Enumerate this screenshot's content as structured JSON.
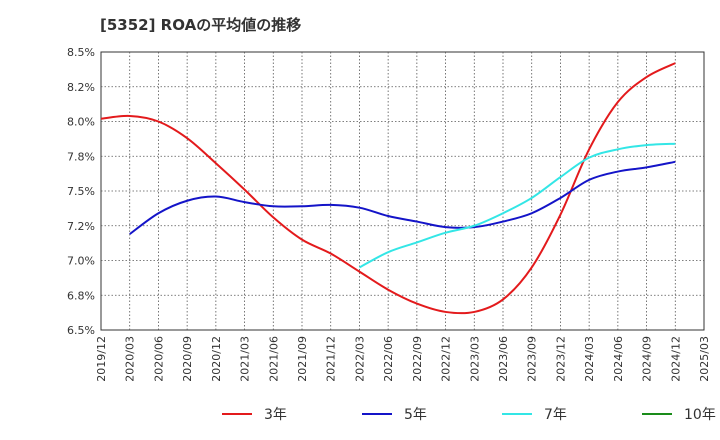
{
  "chart_data": {
    "type": "line",
    "title": "[5352]  ROAの平均値の推移",
    "xlabel": "",
    "ylabel": "",
    "ylim": [
      6.5,
      8.5
    ],
    "y_ticks": [
      {
        "value": 6.5,
        "label": "6.5%"
      },
      {
        "value": 6.75,
        "label": "6.8%"
      },
      {
        "value": 7.0,
        "label": "7.0%"
      },
      {
        "value": 7.25,
        "label": "7.2%"
      },
      {
        "value": 7.5,
        "label": "7.5%"
      },
      {
        "value": 7.75,
        "label": "7.8%"
      },
      {
        "value": 8.0,
        "label": "8.0%"
      },
      {
        "value": 8.25,
        "label": "8.2%"
      },
      {
        "value": 8.5,
        "label": "8.5%"
      }
    ],
    "x_ticks": [
      "2019/12",
      "2020/03",
      "2020/06",
      "2020/09",
      "2020/12",
      "2021/03",
      "2021/06",
      "2021/09",
      "2021/12",
      "2022/03",
      "2022/06",
      "2022/09",
      "2022/12",
      "2023/03",
      "2023/06",
      "2023/09",
      "2023/12",
      "2024/03",
      "2024/06",
      "2024/09",
      "2024/12",
      "2025/03"
    ],
    "grid": true,
    "legend_position": "bottom",
    "series": [
      {
        "name": "3年",
        "color": "#e31a1c",
        "values": [
          [
            "2019/12",
            8.02
          ],
          [
            "2020/03",
            8.04
          ],
          [
            "2020/06",
            8.0
          ],
          [
            "2020/09",
            7.88
          ],
          [
            "2020/12",
            7.7
          ],
          [
            "2021/03",
            7.51
          ],
          [
            "2021/06",
            7.31
          ],
          [
            "2021/09",
            7.15
          ],
          [
            "2021/12",
            7.05
          ],
          [
            "2022/03",
            6.92
          ],
          [
            "2022/06",
            6.79
          ],
          [
            "2022/09",
            6.69
          ],
          [
            "2022/12",
            6.63
          ],
          [
            "2023/03",
            6.63
          ],
          [
            "2023/06",
            6.72
          ],
          [
            "2023/09",
            6.95
          ],
          [
            "2023/12",
            7.33
          ],
          [
            "2024/03",
            7.8
          ],
          [
            "2024/06",
            8.14
          ],
          [
            "2024/09",
            8.32
          ],
          [
            "2024/12",
            8.42
          ]
        ]
      },
      {
        "name": "5年",
        "color": "#1414c8",
        "values": [
          [
            "2020/03",
            7.19
          ],
          [
            "2020/06",
            7.34
          ],
          [
            "2020/09",
            7.43
          ],
          [
            "2020/12",
            7.46
          ],
          [
            "2021/03",
            7.42
          ],
          [
            "2021/06",
            7.39
          ],
          [
            "2021/09",
            7.39
          ],
          [
            "2021/12",
            7.4
          ],
          [
            "2022/03",
            7.38
          ],
          [
            "2022/06",
            7.32
          ],
          [
            "2022/09",
            7.28
          ],
          [
            "2022/12",
            7.24
          ],
          [
            "2023/03",
            7.24
          ],
          [
            "2023/06",
            7.28
          ],
          [
            "2023/09",
            7.34
          ],
          [
            "2023/12",
            7.45
          ],
          [
            "2024/03",
            7.58
          ],
          [
            "2024/06",
            7.64
          ],
          [
            "2024/09",
            7.67
          ],
          [
            "2024/12",
            7.71
          ]
        ]
      },
      {
        "name": "7年",
        "color": "#33e6e6",
        "values": [
          [
            "2022/03",
            6.95
          ],
          [
            "2022/06",
            7.06
          ],
          [
            "2022/09",
            7.13
          ],
          [
            "2022/12",
            7.2
          ],
          [
            "2023/03",
            7.25
          ],
          [
            "2023/06",
            7.34
          ],
          [
            "2023/09",
            7.45
          ],
          [
            "2023/12",
            7.6
          ],
          [
            "2024/03",
            7.74
          ],
          [
            "2024/06",
            7.8
          ],
          [
            "2024/09",
            7.83
          ],
          [
            "2024/12",
            7.84
          ]
        ]
      },
      {
        "name": "10年",
        "color": "#1a8c1a",
        "values": []
      }
    ]
  }
}
